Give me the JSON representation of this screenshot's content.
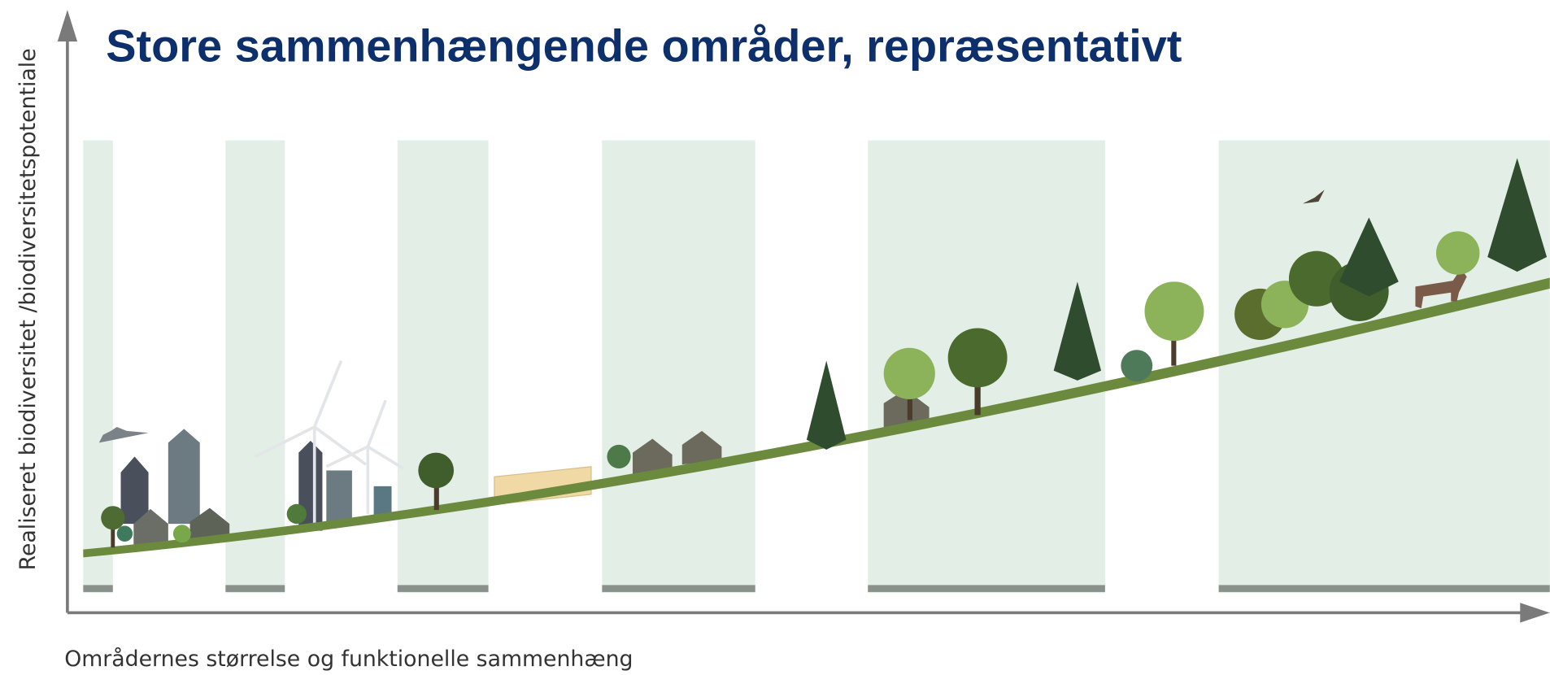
{
  "title": "Store sammenhængende områder, repræsentativt",
  "y_axis_label": "Realiseret biodiversitet /biodiversitetspotentiale",
  "x_axis_label": "Områdernes størrelse og funktionelle sammenhæng"
}
